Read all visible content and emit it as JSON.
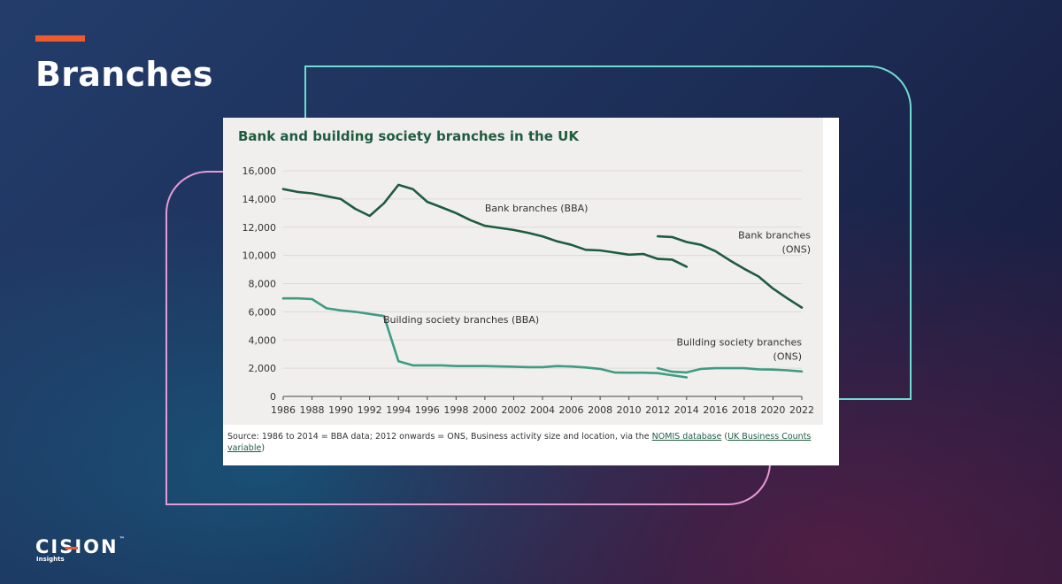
{
  "slide": {
    "title": "Branches"
  },
  "logo": {
    "brand": "CISION",
    "trademark": "™",
    "sub": "Insights"
  },
  "colors": {
    "accent": "#ee5a2c",
    "frame_teal": "#6fdcd2",
    "frame_pink": "#e79ad6",
    "bank_line": "#1e5c3f",
    "building_society_line": "#3e9c82"
  },
  "chart_data": {
    "type": "line",
    "title": "Bank and building society branches in the UK",
    "xlabel": "",
    "ylabel": "",
    "xlim": [
      1986,
      2022
    ],
    "ylim": [
      0,
      16000
    ],
    "x_ticks": [
      "1986",
      "1988",
      "1990",
      "1992",
      "1994",
      "1996",
      "1998",
      "2000",
      "2002",
      "2004",
      "2006",
      "2008",
      "2010",
      "2012",
      "2014",
      "2016",
      "2018",
      "2020",
      "2022"
    ],
    "y_ticks": [
      "0",
      "2,000",
      "4,000",
      "6,000",
      "8,000",
      "10,000",
      "12,000",
      "14,000",
      "16,000"
    ],
    "grid": "horizontal",
    "series": [
      {
        "name": "Bank branches (BBA)",
        "color": "#1e5c3f",
        "x": [
          1986,
          1987,
          1988,
          1989,
          1990,
          1991,
          1992,
          1993,
          1994,
          1995,
          1996,
          1997,
          1998,
          1999,
          2000,
          2001,
          2002,
          2003,
          2004,
          2005,
          2006,
          2007,
          2008,
          2009,
          2010,
          2011,
          2012,
          2013,
          2014
        ],
        "y": [
          14700,
          14500,
          14400,
          14200,
          14000,
          13300,
          12800,
          13700,
          15000,
          14700,
          13800,
          13400,
          13000,
          12500,
          12100,
          11950,
          11800,
          11600,
          11350,
          11000,
          10750,
          10400,
          10350,
          10200,
          10050,
          10100,
          9750,
          9700,
          9200
        ]
      },
      {
        "name": "Bank branches (ONS)",
        "label_lines": [
          "Bank branches",
          "(ONS)"
        ],
        "color": "#1e5c3f",
        "x": [
          2012,
          2013,
          2014,
          2015,
          2016,
          2017,
          2018,
          2019,
          2020,
          2021,
          2022
        ],
        "y": [
          11350,
          11300,
          10950,
          10750,
          10300,
          9650,
          9050,
          8500,
          7650,
          6950,
          6300
        ]
      },
      {
        "name": "Building society branches (BBA)",
        "color": "#3e9c82",
        "x": [
          1986,
          1987,
          1988,
          1989,
          1990,
          1991,
          1992,
          1993,
          1994,
          1995,
          1996,
          1997,
          1998,
          1999,
          2000,
          2001,
          2002,
          2003,
          2004,
          2005,
          2006,
          2007,
          2008,
          2009,
          2010,
          2011,
          2012,
          2013,
          2014
        ],
        "y": [
          6950,
          6950,
          6900,
          6250,
          6100,
          6000,
          5850,
          5700,
          2500,
          2200,
          2200,
          2200,
          2150,
          2150,
          2150,
          2130,
          2110,
          2080,
          2080,
          2150,
          2120,
          2050,
          1950,
          1700,
          1680,
          1680,
          1650,
          1500,
          1350
        ]
      },
      {
        "name": "Building society branches (ONS)",
        "label_lines": [
          "Building society branches",
          "(ONS)"
        ],
        "color": "#3e9c82",
        "x": [
          2012,
          2013,
          2014,
          2015,
          2016,
          2017,
          2018,
          2019,
          2020,
          2021,
          2022
        ],
        "y": [
          2000,
          1750,
          1700,
          1950,
          2000,
          2000,
          2000,
          1920,
          1900,
          1850,
          1770
        ]
      }
    ],
    "source": {
      "prefix": "Source:  1986 to 2014 = BBA data; 2012 onwards = ONS, Business activity size and location, via the ",
      "link1": "NOMIS database",
      "middle": " (",
      "link2": "UK Business Counts variable",
      "suffix": ")"
    }
  }
}
